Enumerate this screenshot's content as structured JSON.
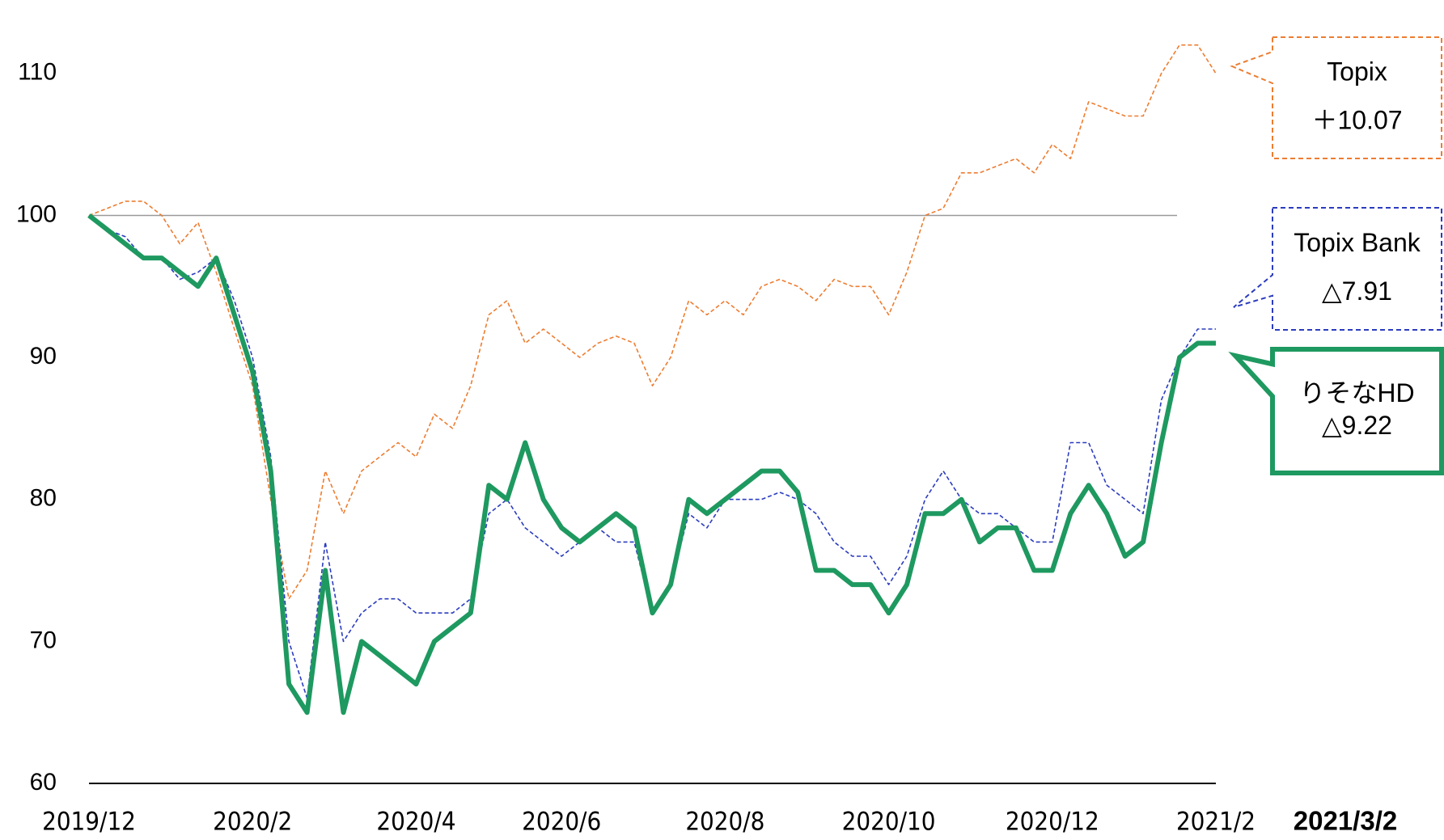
{
  "chart_data": {
    "type": "line",
    "categories": [
      "2019/12",
      null,
      null,
      null,
      null,
      null,
      null,
      null,
      null,
      "2020/2",
      null,
      null,
      null,
      null,
      null,
      null,
      null,
      null,
      "2020/4",
      null,
      null,
      null,
      null,
      null,
      null,
      null,
      "2020/6",
      null,
      null,
      null,
      null,
      null,
      null,
      null,
      null,
      "2020/8",
      null,
      null,
      null,
      null,
      null,
      null,
      null,
      null,
      "2020/10",
      null,
      null,
      null,
      null,
      null,
      null,
      null,
      null,
      "2020/12",
      null,
      null,
      null,
      null,
      null,
      null,
      null,
      null,
      "2021/2"
    ],
    "series": [
      {
        "name": "Topix",
        "color": "#ed7d31",
        "dashed": true,
        "values": [
          100,
          100.5,
          101,
          101,
          100,
          98,
          99.5,
          96,
          92,
          88,
          80,
          73,
          75,
          82,
          79,
          82,
          83,
          84,
          83,
          86,
          85,
          88,
          93,
          94,
          91,
          92,
          91,
          90,
          91,
          91.5,
          91,
          88,
          90,
          94,
          93,
          94,
          93,
          95,
          95.5,
          95,
          94,
          95.5,
          95,
          95,
          93,
          96,
          100,
          100.5,
          103,
          103,
          103.5,
          104,
          103,
          105,
          104,
          108,
          107.5,
          107,
          107,
          110,
          112,
          112,
          110
        ]
      },
      {
        "name": "Topix Bank",
        "color": "#2b3cbf",
        "dashed": true,
        "values": [
          100,
          99,
          98.5,
          97,
          97,
          95.5,
          96,
          97,
          94,
          90,
          83,
          70,
          66,
          77,
          70,
          72,
          73,
          73,
          72,
          72,
          72,
          73,
          79,
          80,
          78,
          77,
          76,
          77,
          78,
          77,
          77,
          72,
          74,
          79,
          78,
          80,
          80,
          80,
          80.5,
          80,
          79,
          77,
          76,
          76,
          74,
          76,
          80,
          82,
          80,
          79,
          79,
          78,
          77,
          77,
          84,
          84,
          81,
          80,
          79,
          87,
          90,
          92,
          92
        ]
      },
      {
        "name": "りそなHD",
        "color": "#1e9960",
        "dashed": false,
        "values": [
          100,
          99,
          98,
          97,
          97,
          96,
          95,
          97,
          93,
          89,
          82,
          67,
          65,
          75,
          65,
          70,
          69,
          68,
          67,
          70,
          71,
          72,
          81,
          80,
          84,
          80,
          78,
          77,
          78,
          79,
          78,
          72,
          74,
          80,
          79,
          80,
          81,
          82,
          82,
          80.5,
          75,
          75,
          74,
          74,
          72,
          74,
          79,
          79,
          80,
          77,
          78,
          78,
          75,
          75,
          79,
          81,
          79,
          76,
          77,
          84,
          90,
          91,
          91
        ]
      }
    ],
    "ylim": [
      60,
      115
    ],
    "yticks": [
      60,
      70,
      80,
      90,
      100,
      110
    ],
    "reference_line": 100,
    "date_label": "2021/3/2",
    "callouts": [
      {
        "lines": [
          "Topix",
          "＋10.07"
        ],
        "color": "#ed7d31",
        "dashed": true
      },
      {
        "lines": [
          "Topix Bank",
          "△7.91"
        ],
        "color": "#2b3cbf",
        "dashed": true
      },
      {
        "lines": [
          "りそなHD",
          "△9.22"
        ],
        "color": "#1e9960",
        "dashed": false
      }
    ]
  }
}
